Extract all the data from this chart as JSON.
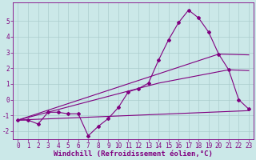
{
  "xlabel": "Windchill (Refroidissement éolien,°C)",
  "background_color": "#cbe8e8",
  "grid_color": "#aacccc",
  "line_color": "#800080",
  "xlim": [
    -0.5,
    23.5
  ],
  "ylim": [
    -2.5,
    6.2
  ],
  "xticks": [
    0,
    1,
    2,
    3,
    4,
    5,
    6,
    7,
    8,
    9,
    10,
    11,
    12,
    13,
    14,
    15,
    16,
    17,
    18,
    19,
    20,
    21,
    22,
    23
  ],
  "yticks": [
    -2,
    -1,
    0,
    1,
    2,
    3,
    4,
    5
  ],
  "series1_x": [
    0,
    1,
    2,
    3,
    4,
    5,
    6,
    7,
    8,
    9,
    10,
    11,
    12,
    13,
    14,
    15,
    16,
    17,
    18,
    19,
    20,
    21,
    22,
    23
  ],
  "series1_y": [
    -1.3,
    -1.3,
    -1.55,
    -0.8,
    -0.8,
    -0.9,
    -0.9,
    -2.3,
    -1.7,
    -1.2,
    -0.5,
    0.5,
    0.7,
    1.05,
    2.5,
    3.8,
    4.9,
    5.7,
    5.2,
    4.3,
    2.9,
    1.9,
    0.0,
    -0.6
  ],
  "series2_x": [
    0,
    23
  ],
  "series2_y": [
    -1.3,
    -0.7
  ],
  "series3_x": [
    0,
    14,
    21,
    23
  ],
  "series3_y": [
    -1.3,
    1.05,
    1.9,
    1.85
  ],
  "series4_x": [
    0,
    20,
    23
  ],
  "series4_y": [
    -1.3,
    2.9,
    2.85
  ],
  "tick_fontsize": 5.5,
  "xlabel_fontsize": 6.5,
  "font_color": "#800080"
}
